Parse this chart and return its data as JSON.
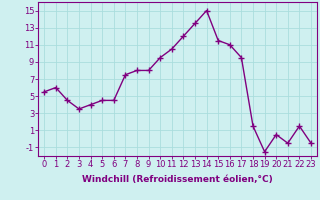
{
  "x": [
    0,
    1,
    2,
    3,
    4,
    5,
    6,
    7,
    8,
    9,
    10,
    11,
    12,
    13,
    14,
    15,
    16,
    17,
    18,
    19,
    20,
    21,
    22,
    23
  ],
  "y": [
    5.5,
    6.0,
    4.5,
    3.5,
    4.0,
    4.5,
    4.5,
    7.5,
    8.0,
    8.0,
    9.5,
    10.5,
    12.0,
    13.5,
    15.0,
    11.5,
    11.0,
    9.5,
    1.5,
    -1.5,
    0.5,
    -0.5,
    1.5,
    -0.5
  ],
  "line_color": "#800080",
  "marker": "+",
  "marker_size": 4,
  "bg_color": "#cff0f0",
  "grid_color": "#aadddd",
  "xlabel": "Windchill (Refroidissement éolien,°C)",
  "xlim": [
    -0.5,
    23.5
  ],
  "ylim": [
    -2,
    16
  ],
  "yticks": [
    -1,
    1,
    3,
    5,
    7,
    9,
    11,
    13,
    15
  ],
  "xticks": [
    0,
    1,
    2,
    3,
    4,
    5,
    6,
    7,
    8,
    9,
    10,
    11,
    12,
    13,
    14,
    15,
    16,
    17,
    18,
    19,
    20,
    21,
    22,
    23
  ],
  "xtick_labels": [
    "0",
    "1",
    "2",
    "3",
    "4",
    "5",
    "6",
    "7",
    "8",
    "9",
    "10",
    "11",
    "12",
    "13",
    "14",
    "15",
    "16",
    "17",
    "18",
    "19",
    "20",
    "21",
    "22",
    "23"
  ],
  "xlabel_fontsize": 6.5,
  "tick_fontsize": 6,
  "line_width": 1.0
}
